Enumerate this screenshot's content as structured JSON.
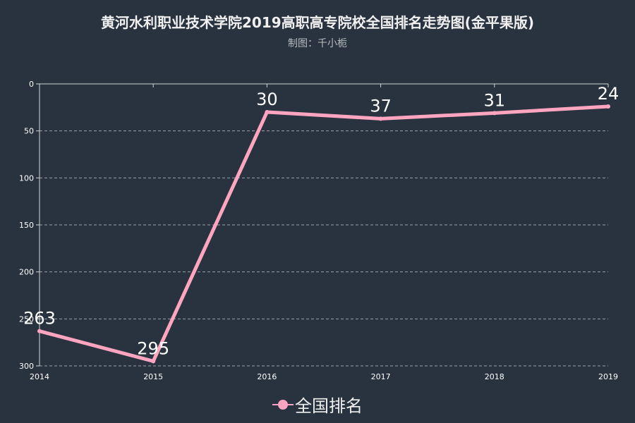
{
  "chart_data": {
    "type": "line",
    "title": "黄河水利职业技术学院2019高职高专院校全国排名走势图(金平果版)",
    "subtitle": "制图：千小栀",
    "x": [
      "2014",
      "2015",
      "2016",
      "2017",
      "2018",
      "2019"
    ],
    "series": [
      {
        "name": "全国排名",
        "values": [
          263,
          295,
          30,
          37,
          31,
          24
        ],
        "color": "#ffa5c0"
      }
    ],
    "yticks": [
      0,
      50,
      100,
      150,
      200,
      250,
      300
    ],
    "ylim": [
      0,
      300
    ],
    "y_inverted": true,
    "grid": true,
    "legend_position": "bottom"
  }
}
